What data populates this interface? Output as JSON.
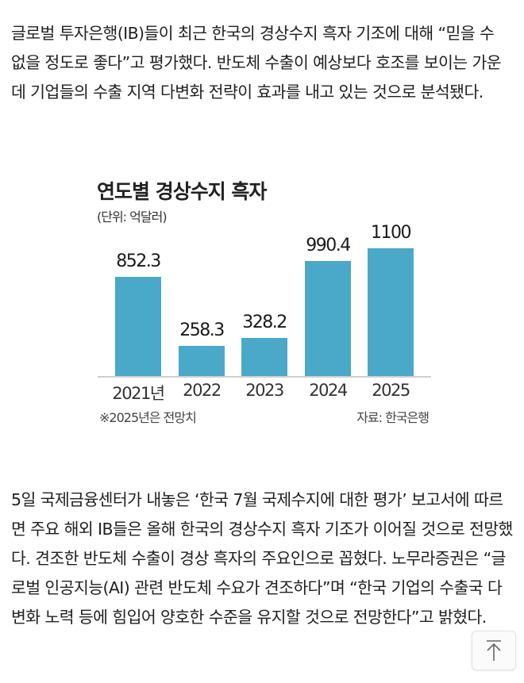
{
  "article": {
    "paragraph1": "글로벌 투자은행(IB)들이 최근 한국의 경상수지 흑자 기조에 대해 “믿을 수 없을 정도로 좋다”고 평가했다. 반도체 수출이 예상보다 호조를 보이는 가운데 기업들의 수출 지역 다변화 전략이 효과를 내고 있는 것으로 분석됐다.",
    "paragraph2": "5일 국제금융센터가 내놓은 ‘한국 7월 국제수지에 대한 평가’ 보고서에 따르면 주요 해외 IB들은 올해 한국의 경상수지 흑자 기조가 이어질 것으로 전망했다. 견조한 반도체 수출이 경상 흑자의 주요인으로 꼽혔다. 노무라증권은 “글로벌 인공지능(AI) 관련 반도체 수요가 견조하다”며 “한국 기업의 수출국 다변화 노력 등에 힘입어 양호한 수준을 유지할 것으로 전망한다”고 밝혔다."
  },
  "chart_data": {
    "type": "bar",
    "title": "연도별 경상수지 흑자",
    "subtitle": "(단위: 억달러)",
    "categories": [
      "2021년",
      "2022",
      "2023",
      "2024",
      "2025"
    ],
    "values": [
      852.3,
      258.3,
      328.2,
      990.4,
      1100
    ],
    "value_labels": [
      "852.3",
      "258.3",
      "328.2",
      "990.4",
      "1100"
    ],
    "xlabel": "",
    "ylabel": "억달러",
    "ylim": [
      0,
      1100
    ],
    "grid": false,
    "bar_color": "#4aa8c8",
    "note": "※2025년은 전망치",
    "source": "자료: 한국은행"
  },
  "controls": {
    "scroll_top_icon": "arrow-up-to-top"
  }
}
